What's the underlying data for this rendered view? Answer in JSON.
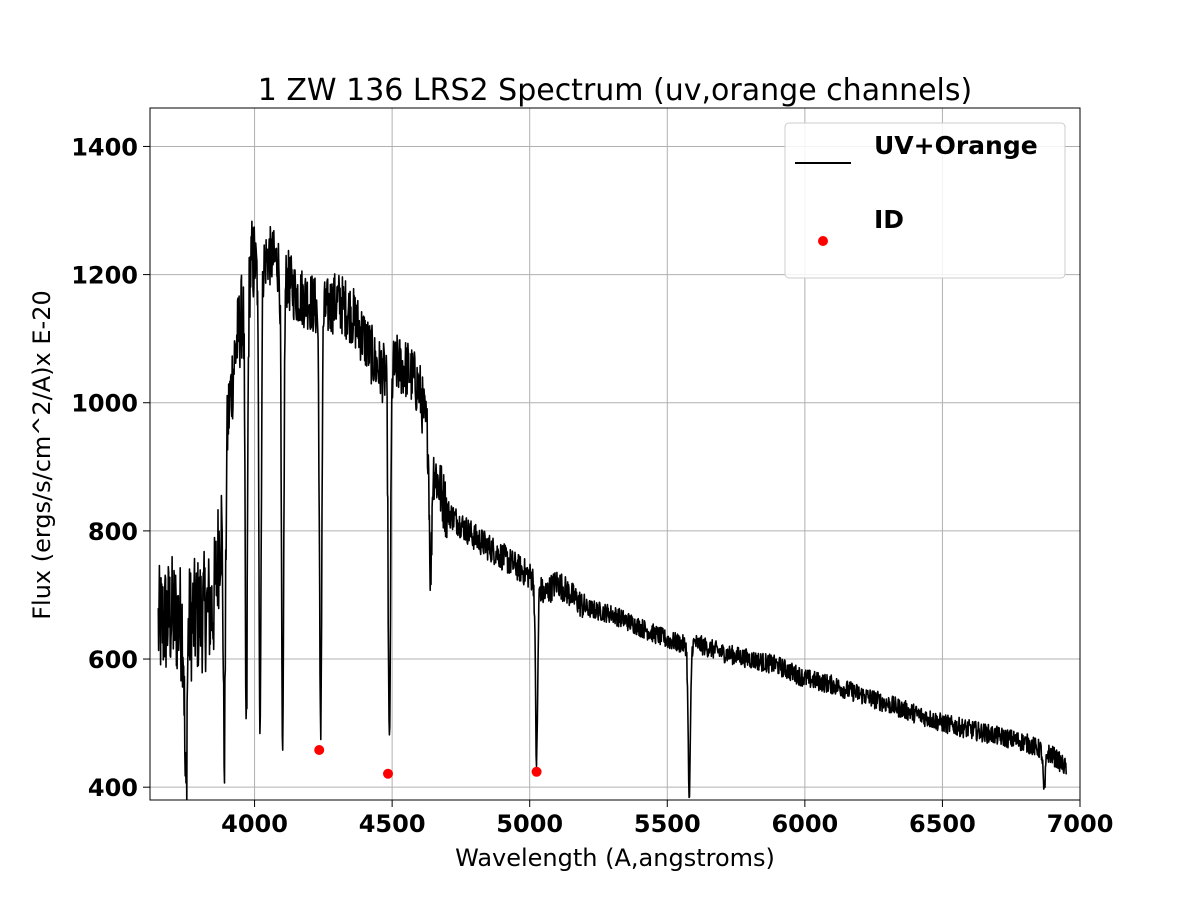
{
  "chart_data": {
    "type": "line",
    "title": "1 ZW 136 LRS2 Spectrum (uv,orange channels)",
    "xlabel": "Wavelength (A,angstroms)",
    "ylabel": "Flux (ergs/s/cm^2/A)x E-20",
    "xlim": [
      3620,
      7000
    ],
    "ylim": [
      380,
      1460
    ],
    "xticks": [
      4000,
      4500,
      5000,
      5500,
      6000,
      6500,
      7000
    ],
    "xtick_labels": [
      "4000",
      "4500",
      "5000",
      "5500",
      "6000",
      "6500",
      "7000"
    ],
    "yticks": [
      400,
      600,
      800,
      1000,
      1200,
      1400
    ],
    "ytick_labels": [
      "400",
      "600",
      "800",
      "1000",
      "1200",
      "1400"
    ],
    "grid": true,
    "legend_position": "top-right",
    "series": [
      {
        "name": "UV+Orange",
        "kind": "line",
        "color": "#000000",
        "x": [
          3650,
          3700,
          3750,
          3800,
          3850,
          3880,
          3900,
          3930,
          3960,
          3990,
          4020,
          4050,
          4080,
          4110,
          4150,
          4200,
          4240,
          4270,
          4300,
          4350,
          4400,
          4440,
          4480,
          4520,
          4560,
          4600,
          4650,
          4700,
          4800,
          4900,
          5000,
          5030,
          5050,
          5100,
          5200,
          5300,
          5400,
          5500,
          5580,
          5600,
          5700,
          5800,
          5900,
          6000,
          6100,
          6200,
          6300,
          6400,
          6500,
          6600,
          6700,
          6800,
          6900,
          6950
        ],
        "y": [
          650,
          670,
          650,
          670,
          680,
          820,
          960,
          1080,
          1150,
          1220,
          1210,
          1230,
          1220,
          1200,
          1170,
          1160,
          1140,
          1150,
          1160,
          1140,
          1100,
          1060,
          1040,
          1060,
          1050,
          1020,
          900,
          830,
          790,
          760,
          730,
          720,
          700,
          720,
          680,
          670,
          650,
          630,
          620,
          625,
          610,
          600,
          590,
          570,
          560,
          545,
          530,
          515,
          500,
          490,
          480,
          470,
          450,
          430
        ],
        "absorption_lines": [
          {
            "x": 3750,
            "min": 380
          },
          {
            "x": 3890,
            "min": 455
          },
          {
            "x": 3970,
            "min": 470
          },
          {
            "x": 4020,
            "min": 505
          },
          {
            "x": 4102,
            "min": 425
          },
          {
            "x": 4240,
            "min": 475
          },
          {
            "x": 4490,
            "min": 445
          },
          {
            "x": 4640,
            "min": 730
          },
          {
            "x": 5025,
            "min": 440
          },
          {
            "x": 5580,
            "min": 380
          },
          {
            "x": 6870,
            "min": 390
          }
        ]
      },
      {
        "name": "ID",
        "kind": "scatter",
        "color": "#ff0000",
        "x": [
          4235,
          4485,
          5025
        ],
        "y": [
          458,
          421,
          424
        ]
      }
    ]
  }
}
